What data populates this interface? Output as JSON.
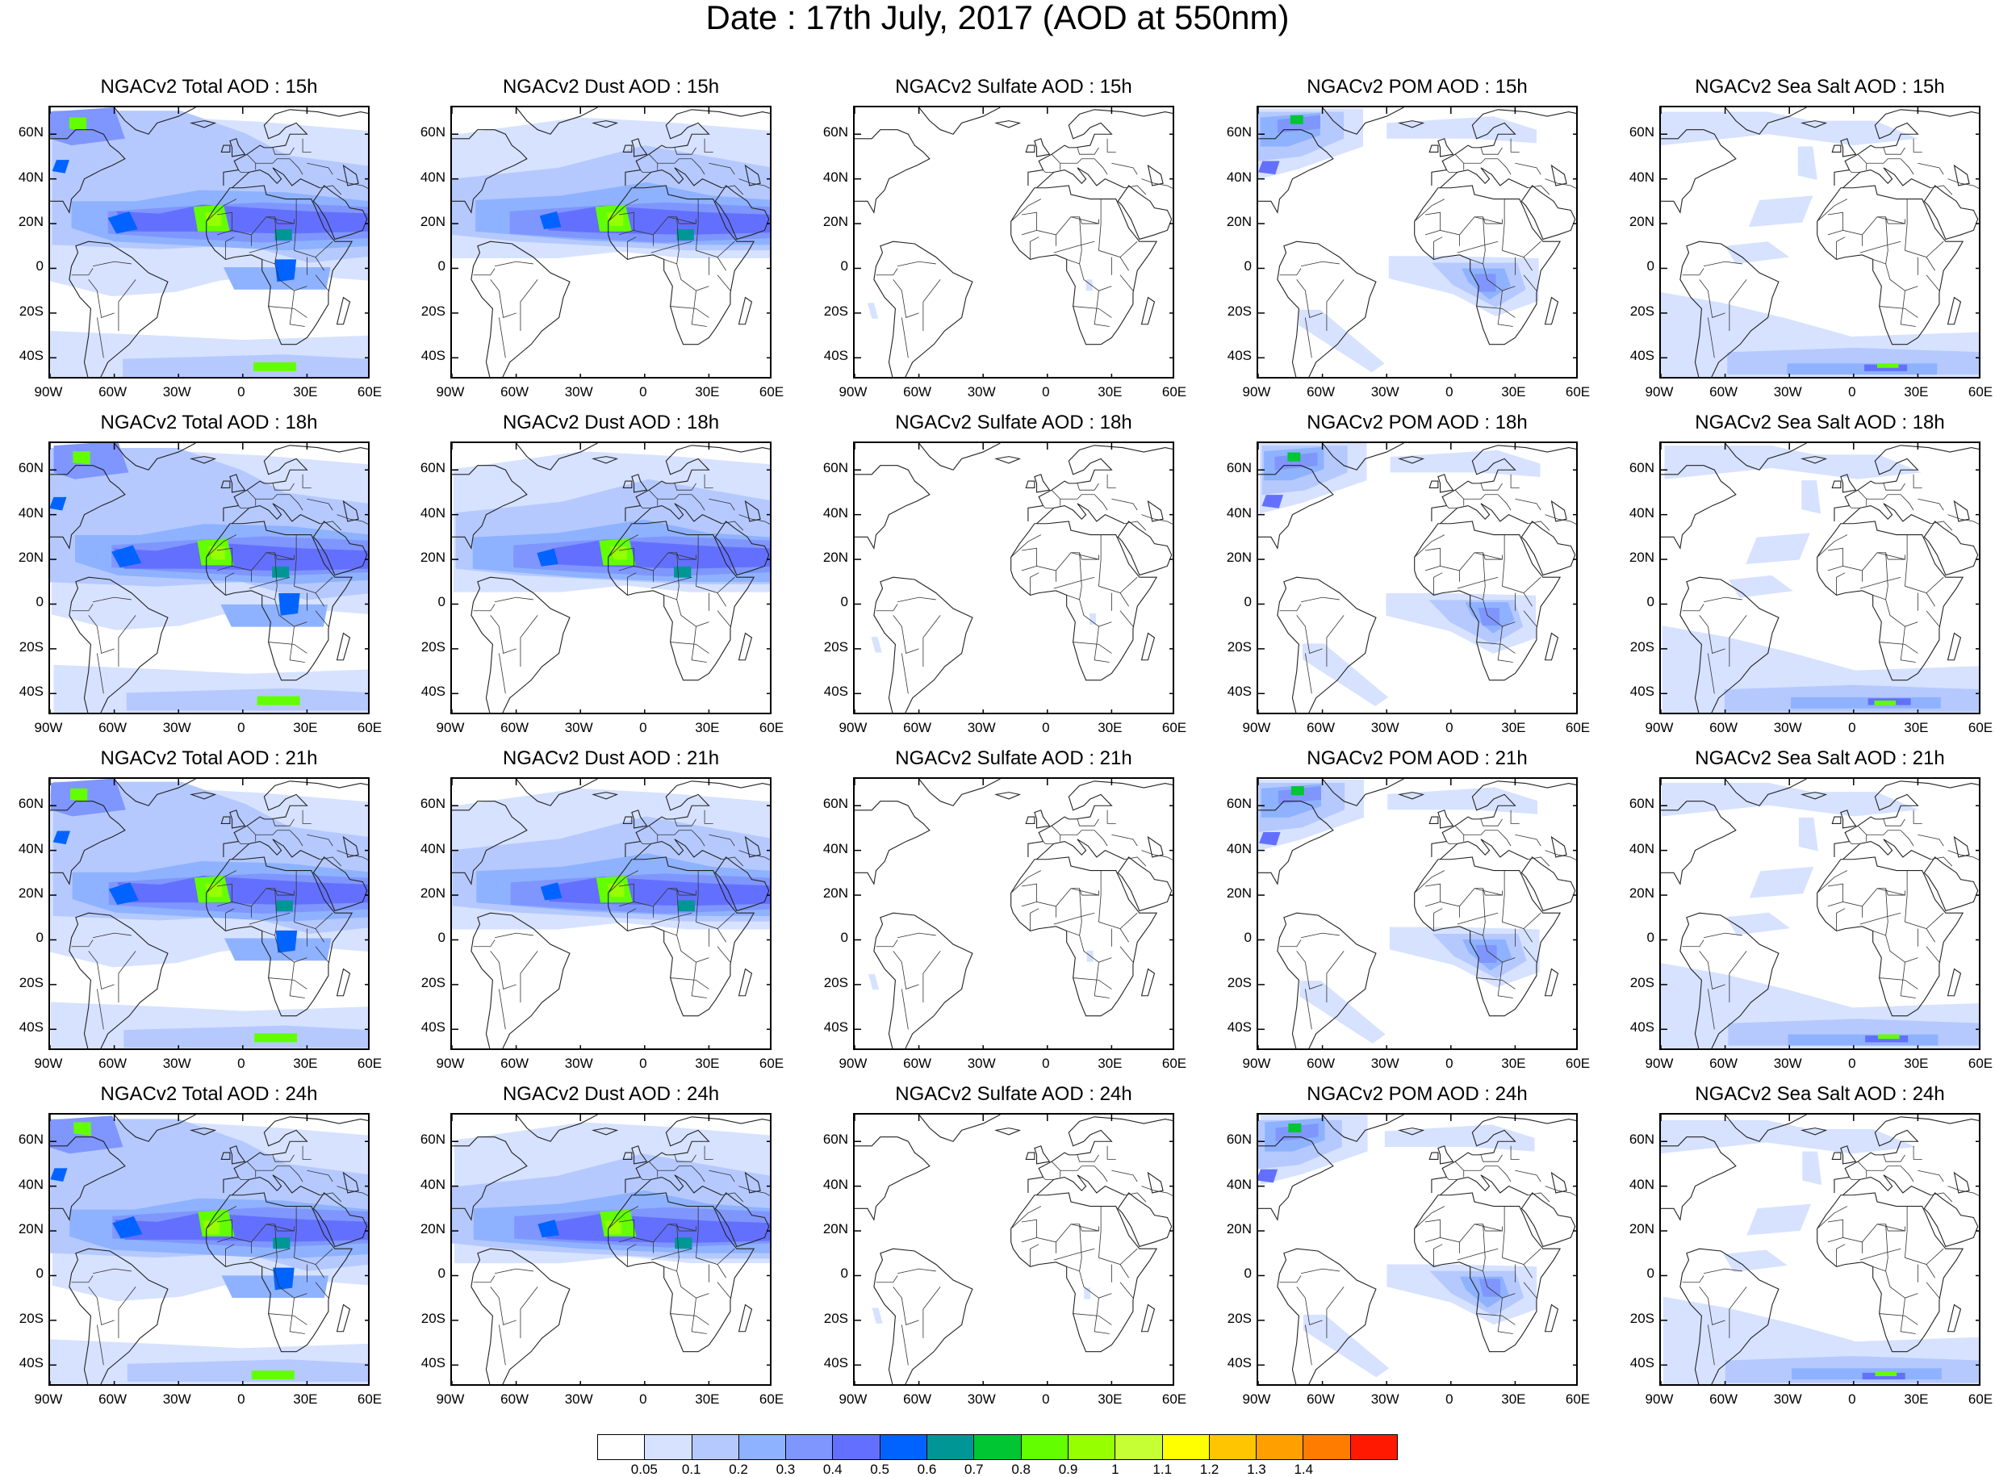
{
  "title": "Date : 17th July, 2017 (AOD at 550nm)",
  "lat_ticks": [
    "60N",
    "40N",
    "20N",
    "0",
    "20S",
    "40S"
  ],
  "lon_ticks": [
    "90W",
    "60W",
    "30W",
    "0",
    "30E",
    "60E"
  ],
  "rows": [
    {
      "hour": "15h",
      "titles": [
        "NGACv2 Total AOD : 15h",
        "NGACv2 Dust AOD : 15h",
        "NGACv2 Sulfate AOD : 15h",
        "NGACv2 POM AOD : 15h",
        "NGACv2 Sea Salt AOD : 15h"
      ]
    },
    {
      "hour": "18h",
      "titles": [
        "NGACv2 Total AOD : 18h",
        "NGACv2 Dust AOD : 18h",
        "NGACv2 Sulfate AOD : 18h",
        "NGACv2 POM AOD : 18h",
        "NGACv2 Sea Salt AOD : 18h"
      ]
    },
    {
      "hour": "21h",
      "titles": [
        "NGACv2 Total AOD : 21h",
        "NGACv2 Dust AOD : 21h",
        "NGACv2 Sulfate AOD : 21h",
        "NGACv2 POM AOD : 21h",
        "NGACv2 Sea Salt AOD : 21h"
      ]
    },
    {
      "hour": "24h",
      "titles": [
        "NGACv2 Total AOD : 24h",
        "NGACv2 Dust AOD : 24h",
        "NGACv2 Sulfate AOD : 24h",
        "NGACv2 POM AOD : 24h",
        "NGACv2 Sea Salt  AOD : 24h"
      ]
    }
  ],
  "colorbar": {
    "labels": [
      "0.05",
      "0.1",
      "0.2",
      "0.3",
      "0.4",
      "0.5",
      "0.6",
      "0.7",
      "0.8",
      "0.9",
      "1",
      "1.1",
      "1.2",
      "1.3",
      "1.4"
    ],
    "colors": [
      "#ffffff",
      "#d6e2ff",
      "#b5c9ff",
      "#8eb2ff",
      "#7f96ff",
      "#6370ff",
      "#0063ff",
      "#009696",
      "#00c633",
      "#63ff00",
      "#96ff00",
      "#c6ff33",
      "#ffff00",
      "#ffc600",
      "#ffa000",
      "#ff7c00",
      "#ff1900"
    ]
  }
}
